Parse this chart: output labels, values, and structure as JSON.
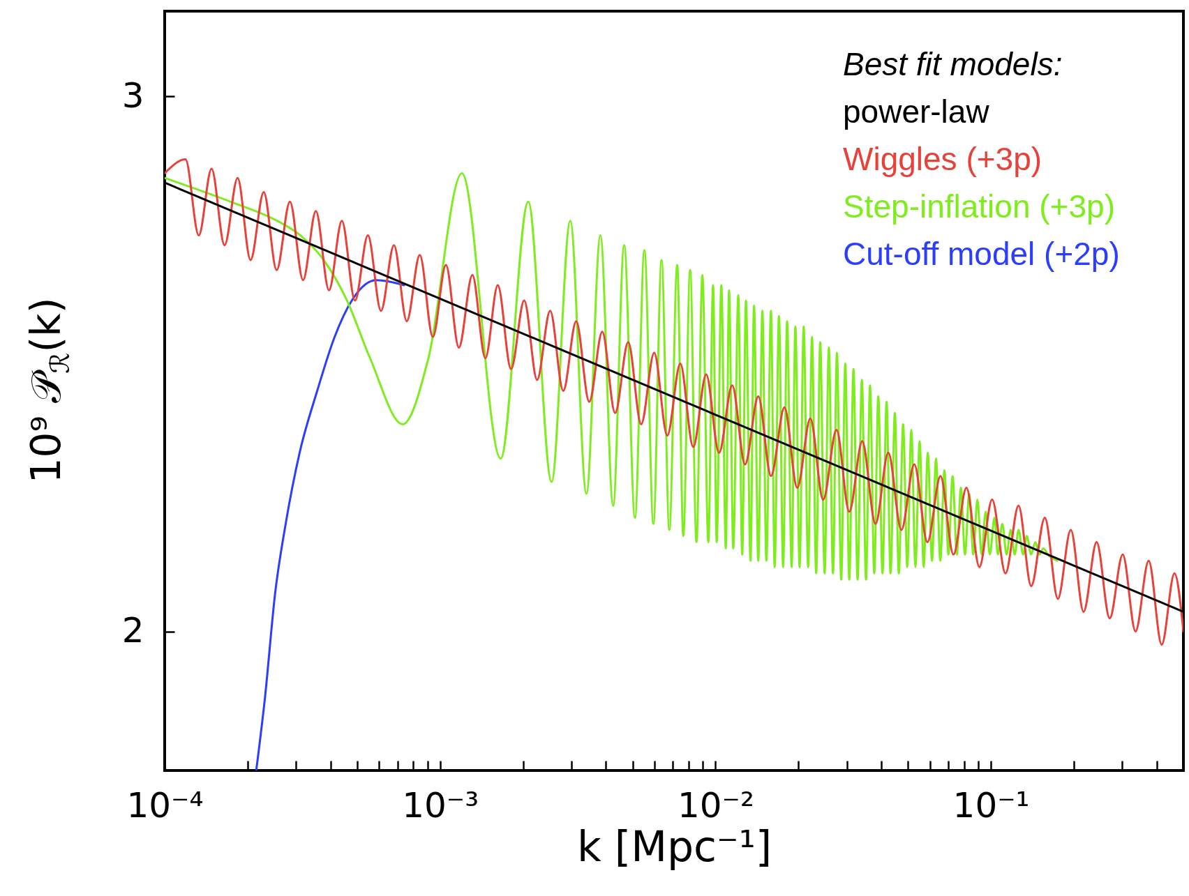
{
  "chart_data": {
    "type": "line",
    "xlabel": "k [Mpc⁻¹]",
    "ylabel": "10⁹ 𝒫$_{ℛ}$(k)",
    "legend_title": "Best fit models:",
    "legend": "top right",
    "log": "xy",
    "grid": false,
    "marker": "none",
    "line_style": "solid",
    "xlim": [
      0.0001,
      0.5
    ],
    "ylim": [
      1.8,
      3.2
    ],
    "xticks": [
      {
        "value": 0.0001,
        "label": "10⁻⁴"
      },
      {
        "value": 0.0002,
        "label": null
      },
      {
        "value": 0.0003,
        "label": null
      },
      {
        "value": 0.0004,
        "label": null
      },
      {
        "value": 0.0005,
        "label": null
      },
      {
        "value": 0.0006,
        "label": null
      },
      {
        "value": 0.0007,
        "label": null
      },
      {
        "value": 0.0008,
        "label": null
      },
      {
        "value": 0.0009,
        "label": null
      },
      {
        "value": 0.001,
        "label": "10⁻³"
      },
      {
        "value": 0.002,
        "label": null
      },
      {
        "value": 0.003,
        "label": null
      },
      {
        "value": 0.004,
        "label": null
      },
      {
        "value": 0.005,
        "label": null
      },
      {
        "value": 0.006,
        "label": null
      },
      {
        "value": 0.007,
        "label": null
      },
      {
        "value": 0.008,
        "label": null
      },
      {
        "value": 0.009,
        "label": null
      },
      {
        "value": 0.01,
        "label": "10⁻²"
      },
      {
        "value": 0.02,
        "label": null
      },
      {
        "value": 0.03,
        "label": null
      },
      {
        "value": 0.04,
        "label": null
      },
      {
        "value": 0.05,
        "label": null
      },
      {
        "value": 0.06,
        "label": null
      },
      {
        "value": 0.07,
        "label": null
      },
      {
        "value": 0.08,
        "label": null
      },
      {
        "value": 0.09,
        "label": null
      },
      {
        "value": 0.1,
        "label": "10⁻¹"
      },
      {
        "value": 0.2,
        "label": null
      },
      {
        "value": 0.3,
        "label": null
      },
      {
        "value": 0.4,
        "label": null
      },
      {
        "value": 0.5,
        "label": null
      }
    ],
    "yticks": [
      2,
      3
    ],
    "series": [
      {
        "name": "power-law",
        "color": "#000000",
        "x": [
          0.0001,
          0.5
        ],
        "values": [
          2.81,
          2.03
        ]
      },
      {
        "name": "Wiggles (+3p)",
        "color": "#e8413a",
        "x": [
          0.0001,
          0.000119,
          0.000133,
          0.000148,
          0.000165,
          0.000184,
          0.000205,
          0.000229,
          0.000255,
          0.000285,
          0.000318,
          0.000354,
          0.000395,
          0.00044,
          0.000491,
          0.000547,
          0.00061,
          0.00068,
          0.000757,
          0.000844,
          0.000941,
          0.00105,
          0.00117,
          0.00131,
          0.00146,
          0.00162,
          0.00181,
          0.00202,
          0.00225,
          0.00251,
          0.0028,
          0.00312,
          0.00348,
          0.00388,
          0.00432,
          0.00482,
          0.00537,
          0.00599,
          0.00668,
          0.00745,
          0.0083,
          0.00925,
          0.0103,
          0.0115,
          0.0128,
          0.0143,
          0.0159,
          0.0178,
          0.0198,
          0.0221,
          0.0246,
          0.0275,
          0.0306,
          0.0341,
          0.0381,
          0.0424,
          0.0473,
          0.0527,
          0.0588,
          0.0656,
          0.0731,
          0.0815,
          0.0908,
          0.101,
          0.113,
          0.126,
          0.14,
          0.157,
          0.175,
          0.195,
          0.217,
          0.242,
          0.27,
          0.301,
          0.335,
          0.374,
          0.417,
          0.464,
          0.5
        ],
        "values": [
          2.83,
          2.86,
          2.7,
          2.84,
          2.68,
          2.82,
          2.65,
          2.79,
          2.63,
          2.77,
          2.61,
          2.75,
          2.59,
          2.73,
          2.57,
          2.7,
          2.55,
          2.68,
          2.53,
          2.66,
          2.5,
          2.64,
          2.48,
          2.62,
          2.46,
          2.6,
          2.44,
          2.57,
          2.42,
          2.55,
          2.4,
          2.53,
          2.38,
          2.51,
          2.36,
          2.49,
          2.34,
          2.47,
          2.32,
          2.45,
          2.3,
          2.43,
          2.29,
          2.41,
          2.27,
          2.39,
          2.25,
          2.37,
          2.23,
          2.35,
          2.21,
          2.33,
          2.19,
          2.31,
          2.17,
          2.29,
          2.16,
          2.27,
          2.14,
          2.25,
          2.12,
          2.23,
          2.1,
          2.21,
          2.09,
          2.2,
          2.07,
          2.18,
          2.05,
          2.16,
          2.03,
          2.14,
          2.02,
          2.12,
          2.0,
          2.11,
          1.98,
          2.09,
          2.0
        ]
      },
      {
        "name": "Step-inflation (+3p)",
        "color": "#7fec1e",
        "x": [
          0.0001,
          0.000173,
          0.000256,
          0.000311,
          0.000378,
          0.000459,
          0.000557,
          0.000732,
          0.000907,
          0.0012,
          0.00166,
          0.00209,
          0.00254,
          0.00297,
          0.0034,
          0.00382,
          0.00425,
          0.00466,
          0.0051,
          0.00552,
          0.00595,
          0.00637,
          0.0068,
          0.00726,
          0.00764,
          0.00809,
          0.00853,
          0.00896,
          0.00942,
          0.0098,
          0.0101,
          0.0105,
          0.0109,
          0.0112,
          0.0116,
          0.0121,
          0.0125,
          0.0129,
          0.0134,
          0.0138,
          0.0143,
          0.0148,
          0.0153,
          0.0159,
          0.0164,
          0.017,
          0.0176,
          0.0182,
          0.0189,
          0.0195,
          0.0202,
          0.0209,
          0.0217,
          0.0224,
          0.0232,
          0.024,
          0.0249,
          0.0258,
          0.0267,
          0.0276,
          0.0286,
          0.0296,
          0.0306,
          0.0317,
          0.0328,
          0.034,
          0.0352,
          0.0364,
          0.0377,
          0.039,
          0.0404,
          0.0418,
          0.0432,
          0.0448,
          0.0463,
          0.048,
          0.0497,
          0.0514,
          0.0532,
          0.0551,
          0.057,
          0.059,
          0.0611,
          0.0632,
          0.0655,
          0.0678,
          0.0701,
          0.0726,
          0.0752,
          0.0778,
          0.0805,
          0.0834,
          0.0863,
          0.0893,
          0.0925,
          0.0957,
          0.0991,
          0.103,
          0.106,
          0.11,
          0.114,
          0.118,
          0.122,
          0.126,
          0.131,
          0.135,
          0.14,
          0.145,
          0.15,
          0.155,
          0.161,
          0.174
        ],
        "values": [
          2.82,
          2.77,
          2.73,
          2.7,
          2.65,
          2.57,
          2.46,
          2.34,
          2.46,
          2.83,
          2.28,
          2.77,
          2.24,
          2.73,
          2.22,
          2.7,
          2.2,
          2.68,
          2.18,
          2.67,
          2.17,
          2.65,
          2.16,
          2.64,
          2.15,
          2.63,
          2.14,
          2.62,
          2.14,
          2.6,
          2.14,
          2.6,
          2.13,
          2.59,
          2.13,
          2.58,
          2.12,
          2.57,
          2.11,
          2.56,
          2.11,
          2.55,
          2.11,
          2.55,
          2.1,
          2.54,
          2.1,
          2.53,
          2.1,
          2.52,
          2.1,
          2.52,
          2.1,
          2.5,
          2.09,
          2.49,
          2.09,
          2.48,
          2.09,
          2.47,
          2.08,
          2.45,
          2.08,
          2.44,
          2.08,
          2.42,
          2.08,
          2.41,
          2.09,
          2.39,
          2.09,
          2.38,
          2.09,
          2.36,
          2.09,
          2.34,
          2.1,
          2.33,
          2.1,
          2.31,
          2.1,
          2.29,
          2.11,
          2.28,
          2.11,
          2.26,
          2.12,
          2.25,
          2.12,
          2.23,
          2.12,
          2.22,
          2.12,
          2.21,
          2.12,
          2.19,
          2.12,
          2.18,
          2.12,
          2.17,
          2.12,
          2.16,
          2.12,
          2.16,
          2.12,
          2.15,
          2.12,
          2.14,
          2.12,
          2.13,
          2.12,
          2.11
        ]
      },
      {
        "name": "Cut-off model (+2p)",
        "color": "#2b3dff",
        "x": [
          0.000215,
          0.000231,
          0.000252,
          0.000275,
          0.000309,
          0.000358,
          0.000414,
          0.000478,
          0.000586,
          0.00074
        ],
        "values": [
          1.8,
          1.9,
          2.06,
          2.17,
          2.29,
          2.4,
          2.5,
          2.57,
          2.61,
          2.6
        ]
      }
    ]
  }
}
